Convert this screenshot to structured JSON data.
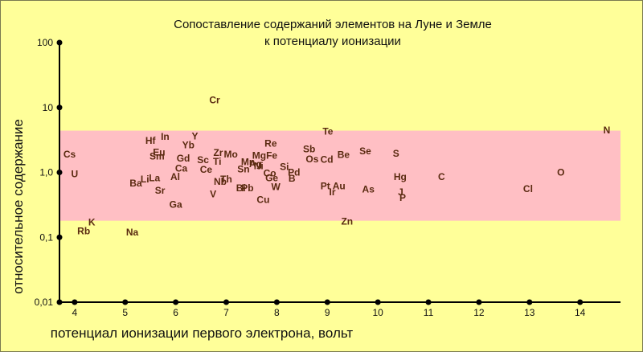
{
  "chart_data": {
    "type": "scatter",
    "title": [
      "Сопоставление содержаний элементов на Луне и Земле",
      "к потенциалу ионизации"
    ],
    "xlabel": "потенциал ионизации первого электрона, вольт",
    "ylabel": "относительное содержание",
    "xlim": [
      3.7,
      14.8
    ],
    "ylim": [
      0.01,
      100
    ],
    "y_scale": "log",
    "x_ticks": [
      4,
      5,
      6,
      7,
      8,
      9,
      10,
      11,
      12,
      13,
      14
    ],
    "x_tick_labels": [
      "4",
      "5",
      "6",
      "7",
      "8",
      "9",
      "10",
      "11",
      "12",
      "13",
      "14"
    ],
    "y_ticks": [
      100,
      10,
      1,
      0.1,
      0.01
    ],
    "y_tick_labels": [
      "100",
      "10",
      "1,0",
      "0,1",
      "0,01"
    ],
    "band": {
      "y_low": 0.18,
      "y_high": 4.4,
      "color": "#FFBFC4"
    },
    "colors": {
      "background": "#FFFF99",
      "label": "#5a2a10",
      "axis": "#000000"
    },
    "points": [
      {
        "label": "Cs",
        "x": 3.9,
        "y": 1.9
      },
      {
        "label": "U",
        "x": 4.0,
        "y": 0.95
      },
      {
        "label": "K",
        "x": 4.34,
        "y": 0.17
      },
      {
        "label": "Rb",
        "x": 4.18,
        "y": 0.125
      },
      {
        "label": "Na",
        "x": 5.14,
        "y": 0.12
      },
      {
        "label": "Li",
        "x": 5.39,
        "y": 0.78
      },
      {
        "label": "La",
        "x": 5.58,
        "y": 0.82
      },
      {
        "label": "Al",
        "x": 5.99,
        "y": 0.86
      },
      {
        "label": "Ba",
        "x": 5.21,
        "y": 0.68
      },
      {
        "label": "Sr",
        "x": 5.69,
        "y": 0.53
      },
      {
        "label": "Ga",
        "x": 6.0,
        "y": 0.32
      },
      {
        "label": "Hf",
        "x": 5.5,
        "y": 3.1
      },
      {
        "label": "In",
        "x": 5.79,
        "y": 3.55
      },
      {
        "label": "Sm",
        "x": 5.63,
        "y": 1.78
      },
      {
        "label": "Eu",
        "x": 5.67,
        "y": 2.05
      },
      {
        "label": "Gd",
        "x": 6.15,
        "y": 1.65
      },
      {
        "label": "Yb",
        "x": 6.25,
        "y": 2.65
      },
      {
        "label": "Y",
        "x": 6.38,
        "y": 3.6
      },
      {
        "label": "Ca",
        "x": 6.11,
        "y": 1.15
      },
      {
        "label": "Sc",
        "x": 6.54,
        "y": 1.55
      },
      {
        "label": "Zr",
        "x": 6.84,
        "y": 2.0
      },
      {
        "label": "Ti",
        "x": 6.82,
        "y": 1.48
      },
      {
        "label": "Ce",
        "x": 6.6,
        "y": 1.1
      },
      {
        "label": "Nb",
        "x": 6.88,
        "y": 0.72
      },
      {
        "label": "Th",
        "x": 7.0,
        "y": 0.79
      },
      {
        "label": "V",
        "x": 6.74,
        "y": 0.46
      },
      {
        "label": "Cr",
        "x": 6.77,
        "y": 13.0
      },
      {
        "label": "Mo",
        "x": 7.09,
        "y": 1.9
      },
      {
        "label": "Mn",
        "x": 7.43,
        "y": 1.45
      },
      {
        "label": "Sn",
        "x": 7.34,
        "y": 1.12
      },
      {
        "label": "Bi",
        "x": 7.29,
        "y": 0.57
      },
      {
        "label": "Pb",
        "x": 7.42,
        "y": 0.57
      },
      {
        "label": "Ag",
        "x": 7.58,
        "y": 1.35
      },
      {
        "label": "Mg",
        "x": 7.65,
        "y": 1.82
      },
      {
        "label": "Fe",
        "x": 7.9,
        "y": 1.82
      },
      {
        "label": "Re",
        "x": 7.88,
        "y": 2.8
      },
      {
        "label": "Ni",
        "x": 7.64,
        "y": 1.25
      },
      {
        "label": "Co",
        "x": 7.86,
        "y": 0.97
      },
      {
        "label": "Si",
        "x": 8.15,
        "y": 1.22
      },
      {
        "label": "Pd",
        "x": 8.34,
        "y": 1.0
      },
      {
        "label": "Ge",
        "x": 7.9,
        "y": 0.82
      },
      {
        "label": "B",
        "x": 8.3,
        "y": 0.81
      },
      {
        "label": "W",
        "x": 7.98,
        "y": 0.6
      },
      {
        "label": "Cu",
        "x": 7.73,
        "y": 0.38
      },
      {
        "label": "Sb",
        "x": 8.64,
        "y": 2.3
      },
      {
        "label": "Os",
        "x": 8.7,
        "y": 1.6
      },
      {
        "label": "Cd",
        "x": 8.99,
        "y": 1.58
      },
      {
        "label": "Be",
        "x": 9.32,
        "y": 1.88
      },
      {
        "label": "Te",
        "x": 9.01,
        "y": 4.3
      },
      {
        "label": "Se",
        "x": 9.75,
        "y": 2.12
      },
      {
        "label": "S",
        "x": 10.36,
        "y": 1.95
      },
      {
        "label": "Pt",
        "x": 8.96,
        "y": 0.62
      },
      {
        "label": "Au",
        "x": 9.23,
        "y": 0.62
      },
      {
        "label": "Ir",
        "x": 9.1,
        "y": 0.5
      },
      {
        "label": "As",
        "x": 9.81,
        "y": 0.55
      },
      {
        "label": "Zn",
        "x": 9.39,
        "y": 0.175
      },
      {
        "label": "Hg",
        "x": 10.44,
        "y": 0.85
      },
      {
        "label": "J",
        "x": 10.45,
        "y": 0.5
      },
      {
        "label": "P",
        "x": 10.49,
        "y": 0.41
      },
      {
        "label": "C",
        "x": 11.26,
        "y": 0.86
      },
      {
        "label": "O",
        "x": 13.62,
        "y": 1.0
      },
      {
        "label": "Cl",
        "x": 12.97,
        "y": 0.56
      },
      {
        "label": "N",
        "x": 14.53,
        "y": 4.5
      }
    ]
  }
}
